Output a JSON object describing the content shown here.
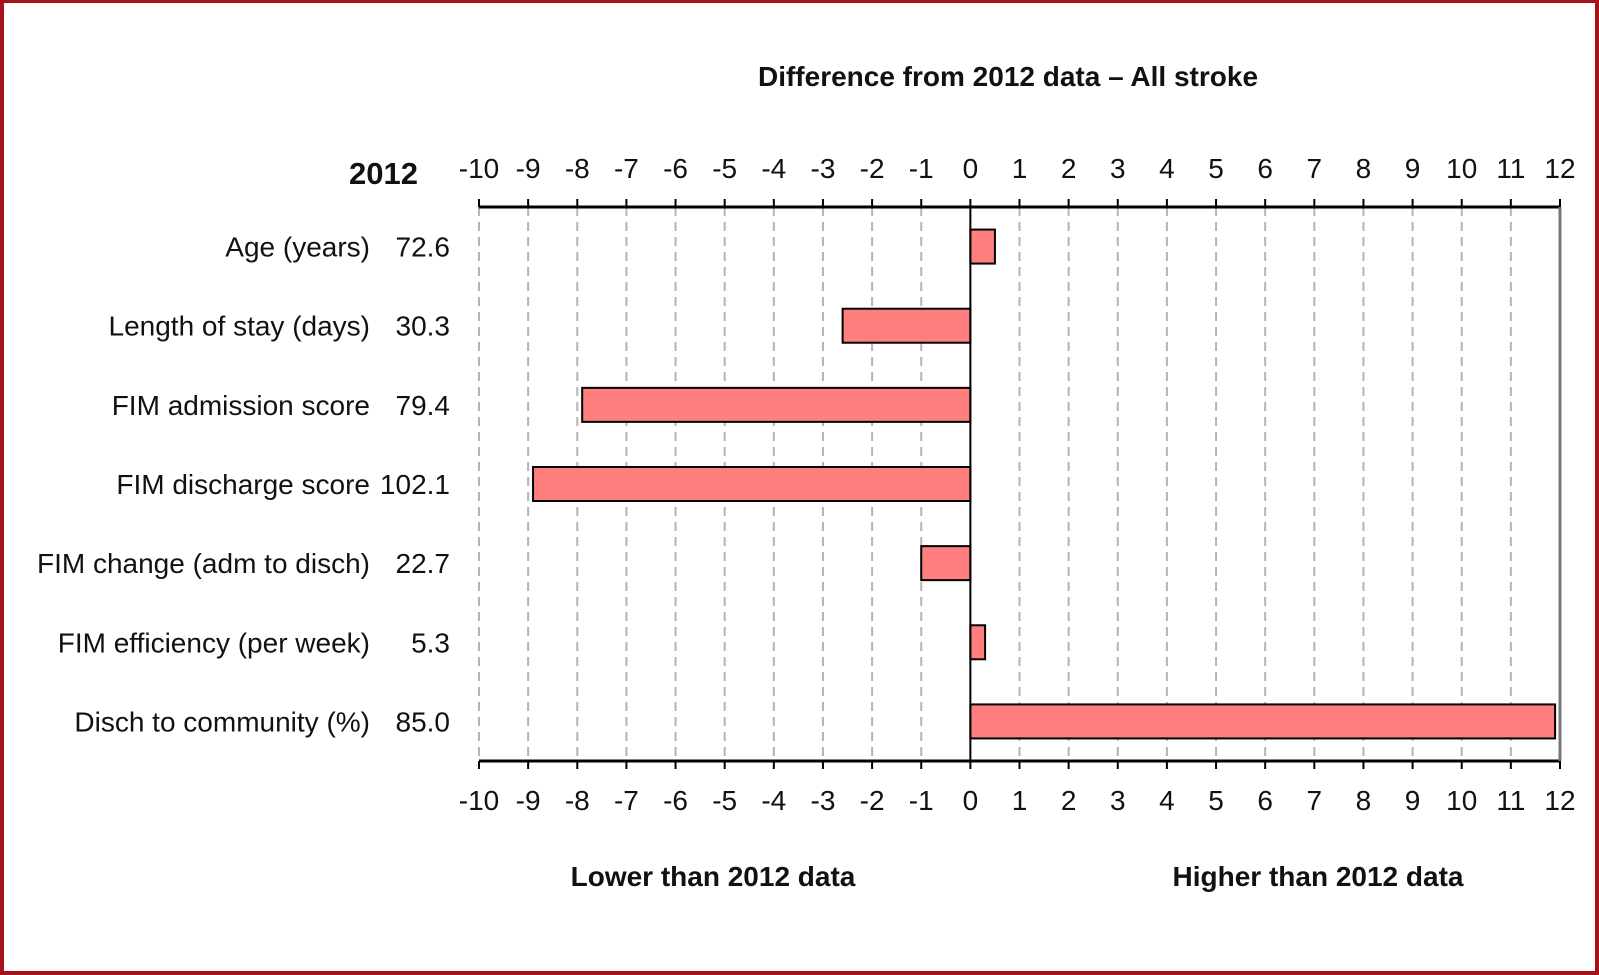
{
  "chart_data": {
    "type": "bar",
    "orientation": "horizontal",
    "title": "Difference from 2012 data – All stroke",
    "reference_label": "2012",
    "categories": [
      "Age (years)",
      "Length of stay (days)",
      "FIM admission score",
      "FIM discharge score",
      "FIM change (adm to disch)",
      "FIM efficiency (per week)",
      "Disch to community (%)"
    ],
    "reference_values": [
      "72.6",
      "30.3",
      "79.4",
      "102.1",
      "22.7",
      "5.3",
      "85.0"
    ],
    "values": [
      0.5,
      -2.6,
      -7.9,
      -8.9,
      -1.0,
      0.3,
      11.9
    ],
    "xlim": [
      -10,
      12
    ],
    "xticks": [
      "-10",
      "-9",
      "-8",
      "-7",
      "-6",
      "-5",
      "-4",
      "-3",
      "-2",
      "-1",
      "0",
      "1",
      "2",
      "3",
      "4",
      "5",
      "6",
      "7",
      "8",
      "9",
      "10",
      "11",
      "12"
    ],
    "grid": true,
    "lower_label": "Lower than 2012 data",
    "higher_label": "Higher than 2012 data",
    "bar_color": "#ff7f7f"
  },
  "colors": {
    "frame": "#a8131b",
    "grid": "#b5b5b5"
  }
}
